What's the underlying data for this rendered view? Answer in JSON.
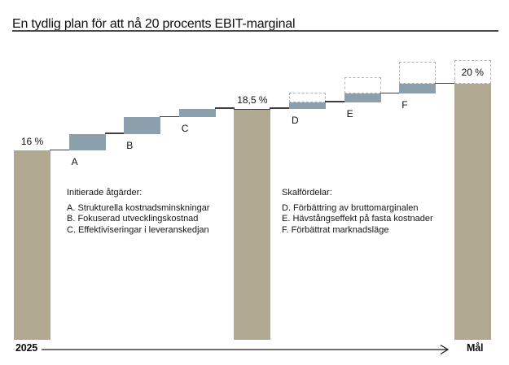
{
  "title": "En tydlig plan för att nå 20 procents EBIT-marginal",
  "colors": {
    "pillar": "#b1a892",
    "step": "#8ba0ac",
    "connector": "#3f3f3f",
    "dashed_outline": "#b3b3b3",
    "arrow": "#1a1a1a",
    "text": "#111111"
  },
  "chart_data": {
    "type": "waterfall",
    "title": "En tydlig plan för att nå 20 procents EBIT-marginal",
    "unit": "% EBIT-marginal",
    "axis_value_labels": [
      "16 %",
      "18,5 %",
      "20 %"
    ],
    "ylim": [
      16,
      21.5
    ],
    "columns": [
      {
        "kind": "pillar",
        "value": 16,
        "label": "16 %"
      },
      {
        "kind": "step",
        "letter": "A",
        "from": 16,
        "to": 17
      },
      {
        "kind": "step",
        "letter": "B",
        "from": 17,
        "to": 18
      },
      {
        "kind": "step",
        "letter": "C",
        "from": 18,
        "to": 18.5
      },
      {
        "kind": "pillar",
        "value": 18.5,
        "label": "18,5 %"
      },
      {
        "kind": "step",
        "letter": "D",
        "from": 18.5,
        "to": 18.9,
        "potential_to": 19.45
      },
      {
        "kind": "step",
        "letter": "E",
        "from": 18.9,
        "to": 19.4,
        "potential_to": 20.4
      },
      {
        "kind": "step",
        "letter": "F",
        "from": 19.4,
        "to": 20,
        "potential_to": 21.3
      },
      {
        "kind": "pillar",
        "value": 20,
        "label": "20 %",
        "potential_to": 21.4
      }
    ]
  },
  "annotations": {
    "left": {
      "header": "Initierade åtgärder:",
      "items": [
        "A. Strukturella kostnadsminskningar",
        "B. Fokuserad utvecklingskostnad",
        "C. Effektiviseringar i leveranskedjan"
      ]
    },
    "right": {
      "header": "Skalfördelar:",
      "items": [
        "D. Förbättring av bruttomarginalen",
        "E. Hävstångseffekt på fasta kostnader",
        "F. Förbättrat marknadsläge"
      ]
    }
  },
  "timeline": {
    "start": "2025",
    "end": "Mål"
  }
}
